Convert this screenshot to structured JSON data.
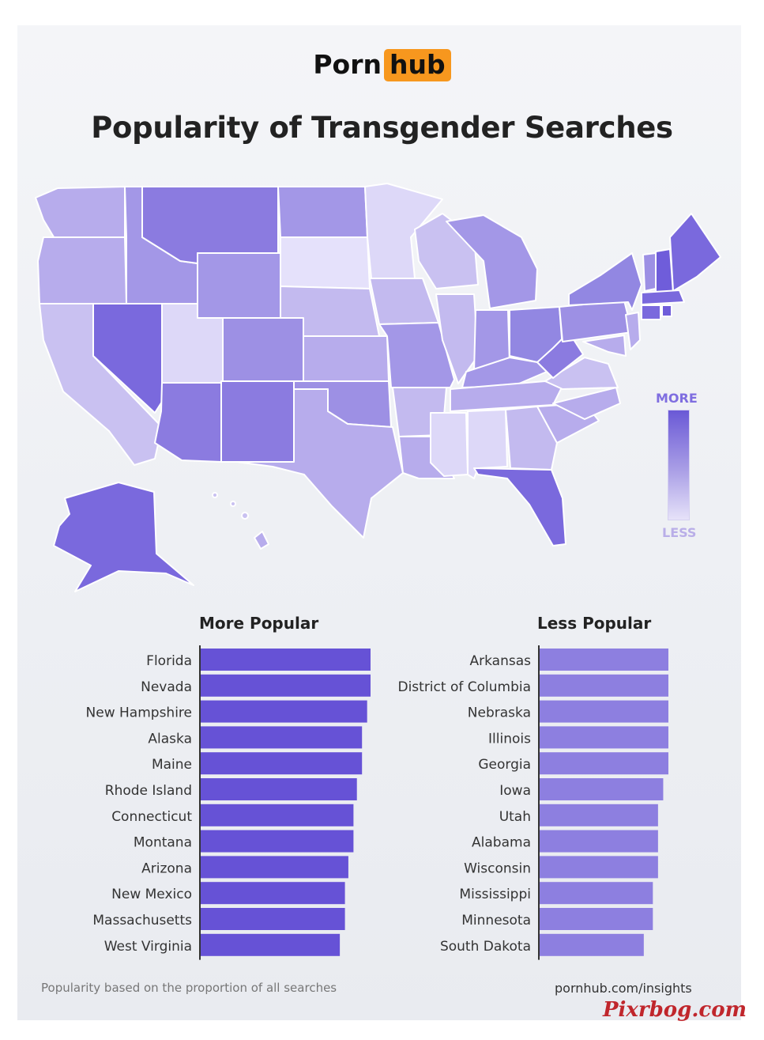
{
  "brand": {
    "part1": "Porn",
    "part2": "hub"
  },
  "title": "Popularity of Transgender Searches",
  "legend": {
    "more": "MORE",
    "less": "LESS"
  },
  "colors": {
    "bar_more": "#6652d6",
    "bar_less": "#8d7fe0",
    "axis": "#333333"
  },
  "chart_data": [
    {
      "type": "bar",
      "orientation": "horizontal",
      "title": "More Popular",
      "categories": [
        "Florida",
        "Nevada",
        "New Hampshire",
        "Alaska",
        "Maine",
        "Rhode Island",
        "Connecticut",
        "Montana",
        "Arizona",
        "New Mexico",
        "Massachusetts",
        "West Virginia"
      ],
      "values": [
        100,
        100,
        98,
        95,
        95,
        92,
        90,
        90,
        87,
        85,
        85,
        82
      ],
      "xlim": [
        0,
        100
      ]
    },
    {
      "type": "bar",
      "orientation": "horizontal",
      "title": "Less Popular",
      "categories": [
        "Arkansas",
        "District of Columbia",
        "Nebraska",
        "Illinois",
        "Georgia",
        "Iowa",
        "Utah",
        "Alabama",
        "Wisconsin",
        "Mississippi",
        "Minnesota",
        "South Dakota"
      ],
      "values": [
        100,
        100,
        100,
        100,
        100,
        96,
        92,
        92,
        92,
        88,
        88,
        81
      ],
      "xlim": [
        0,
        100
      ]
    }
  ],
  "footer": {
    "note": "Popularity based on the proportion of all searches",
    "source": "pornhub.com/insights"
  },
  "watermark": "Pixrbog.com"
}
